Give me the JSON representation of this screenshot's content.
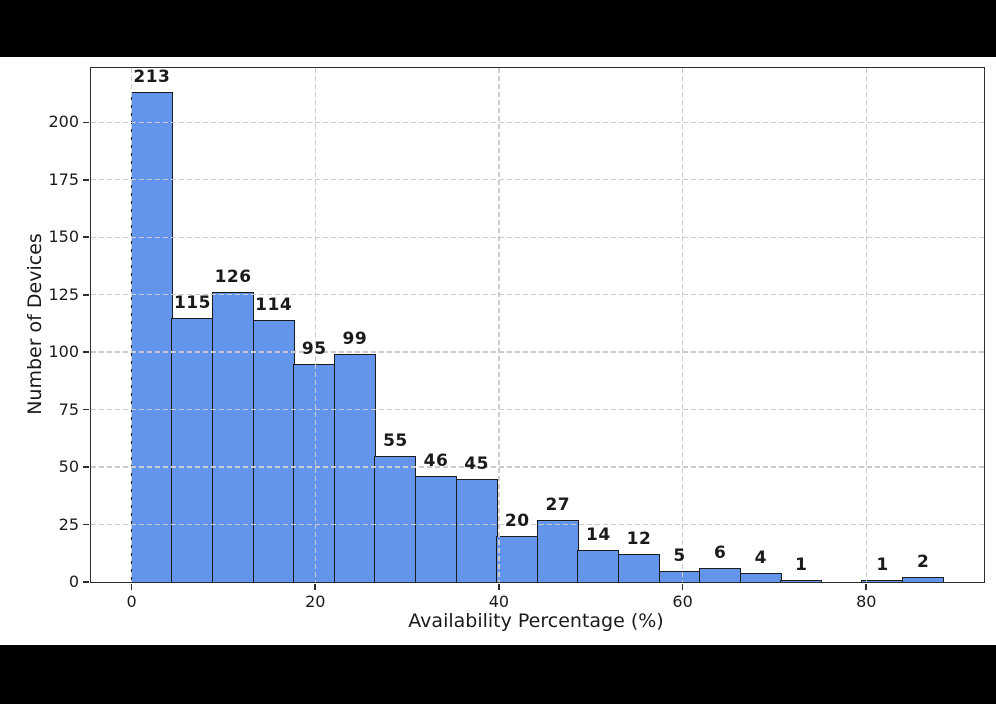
{
  "chart_data": {
    "type": "bar",
    "chart_kind": "histogram",
    "title": "",
    "xlabel": "Availability Percentage (%)",
    "ylabel": "Number of Devices",
    "bin_start": 0,
    "bin_width": 4.42,
    "values": [
      213,
      115,
      126,
      114,
      95,
      99,
      55,
      46,
      45,
      20,
      27,
      14,
      12,
      5,
      6,
      4,
      1,
      0,
      1,
      2
    ],
    "bar_labels": [
      "213",
      "115",
      "126",
      "114",
      "95",
      "99",
      "55",
      "46",
      "45",
      "20",
      "27",
      "14",
      "12",
      "5",
      "6",
      "4",
      "1",
      "",
      "1",
      "2"
    ],
    "x_ticks": [
      0,
      20,
      40,
      60,
      80
    ],
    "y_ticks": [
      0,
      25,
      50,
      75,
      100,
      125,
      150,
      175,
      200
    ],
    "xlim": [
      -4.42,
      92.82
    ],
    "ylim": [
      0,
      223.65
    ],
    "grid": true,
    "grid_style": "dashed",
    "legend": "none",
    "colors": {
      "bar_fill": "#6495ED",
      "bar_edge": "#1c1c1c",
      "grid": "#cccccc",
      "spine": "#2e2e2e",
      "text": "#1a1a1a",
      "figure_bg": "#ffffff",
      "letterbox_bg": "#000000"
    }
  }
}
